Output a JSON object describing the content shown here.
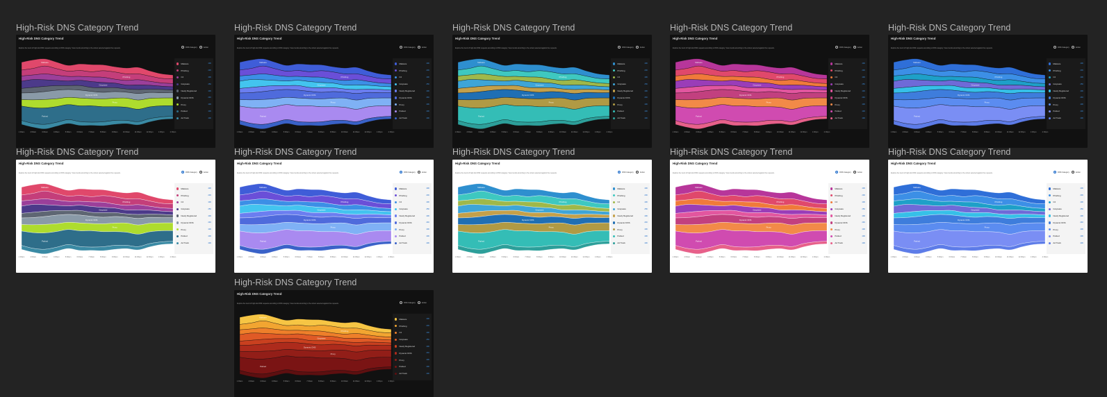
{
  "variant_label": "High-Risk DNS Category Trend",
  "card": {
    "title": "High-Risk DNS Category Trend",
    "description": "Explore the trend of high-risk DNS requests according to DNS category. View trends according to the orders selected against the requests.",
    "toggle_options": [
      "DNS Category",
      "Action"
    ]
  },
  "chart_data": {
    "type": "area",
    "stacked": true,
    "streamgraph": true,
    "title": "High-Risk DNS Category Trend",
    "xlabel": "",
    "ylabel": "",
    "x": [
      "1:00am",
      "2:00am",
      "3:00am",
      "4:00am",
      "5:00am",
      "6:00am",
      "7:00am",
      "8:00am",
      "9:00am",
      "10:00am",
      "11:00am",
      "12:00pm",
      "1:00pm",
      "2:00pm"
    ],
    "series": [
      {
        "name": "Malware",
        "total": "40K",
        "values": [
          12,
          13,
          11,
          10,
          9,
          10,
          11,
          9,
          8,
          9,
          10,
          8,
          7,
          6
        ]
      },
      {
        "name": "Phishing",
        "total": "23K",
        "values": [
          9,
          10,
          12,
          10,
          8,
          9,
          8,
          10,
          11,
          10,
          9,
          8,
          7,
          7
        ]
      },
      {
        "name": "C2",
        "total": "40K",
        "values": [
          8,
          7,
          9,
          8,
          7,
          6,
          7,
          8,
          6,
          7,
          8,
          6,
          5,
          5
        ]
      },
      {
        "name": "Grayware",
        "total": "25K",
        "values": [
          11,
          12,
          10,
          8,
          7,
          8,
          9,
          8,
          7,
          6,
          7,
          6,
          5,
          5
        ]
      },
      {
        "name": "Newly Registered",
        "total": "40K",
        "values": [
          7,
          8,
          8,
          7,
          6,
          7,
          6,
          7,
          6,
          5,
          6,
          5,
          5,
          4
        ]
      },
      {
        "name": "Dynamic DNS",
        "total": "24K",
        "values": [
          10,
          11,
          12,
          13,
          12,
          12,
          11,
          10,
          10,
          9,
          10,
          9,
          8,
          8
        ]
      },
      {
        "name": "Proxy",
        "total": "40K",
        "values": [
          10,
          12,
          13,
          12,
          11,
          12,
          11,
          12,
          13,
          14,
          14,
          13,
          12,
          12
        ]
      },
      {
        "name": "Parked",
        "total": "40K",
        "values": [
          22,
          24,
          25,
          24,
          23,
          24,
          25,
          23,
          21,
          20,
          19,
          18,
          17,
          16
        ]
      },
      {
        "name": "Ad Track",
        "total": "40K",
        "values": [
          6,
          6,
          7,
          6,
          6,
          6,
          5,
          6,
          6,
          5,
          5,
          5,
          4,
          4
        ]
      }
    ],
    "legend_position": "right",
    "grid": false
  },
  "variants": [
    {
      "theme": "dark",
      "colors": [
        "#e0486b",
        "#c43e7a",
        "#9b3f9a",
        "#4c3a8a",
        "#5e6673",
        "#8a9aa8",
        "#aedc2e",
        "#2e6e8a",
        "#3a8aa4"
      ]
    },
    {
      "theme": "dark",
      "colors": [
        "#3f5dd8",
        "#6a4fd8",
        "#3c8fe6",
        "#43c4ef",
        "#6b7ef0",
        "#4f6bdc",
        "#7fb1f5",
        "#a98af0",
        "#3a62c8"
      ]
    },
    {
      "theme": "dark",
      "colors": [
        "#2e8fcf",
        "#3ec8c0",
        "#9fb84a",
        "#3ea5d8",
        "#c4a04a",
        "#1f6fb4",
        "#b09a44",
        "#34bdb6",
        "#2d9f9a"
      ]
    },
    {
      "theme": "dark",
      "colors": [
        "#b7369a",
        "#e0486b",
        "#f07a3a",
        "#9a3db8",
        "#e2569f",
        "#c2407f",
        "#f28a48",
        "#d04bb0",
        "#e7608a"
      ]
    },
    {
      "theme": "dark",
      "colors": [
        "#2f6fd8",
        "#3c8fe6",
        "#1ea0c8",
        "#6f6ad8",
        "#36c0e8",
        "#3e7ddc",
        "#5b8cf0",
        "#7a8ef4",
        "#5d7ce8"
      ]
    },
    {
      "theme": "light",
      "colors": [
        "#e0486b",
        "#c43e7a",
        "#9b3f9a",
        "#4c3a8a",
        "#5e6673",
        "#8a9aa8",
        "#aedc2e",
        "#2e6e8a",
        "#3a8aa4"
      ]
    },
    {
      "theme": "light",
      "colors": [
        "#3f5dd8",
        "#6a4fd8",
        "#3c8fe6",
        "#43c4ef",
        "#6b7ef0",
        "#4f6bdc",
        "#7fb1f5",
        "#a98af0",
        "#3a62c8"
      ]
    },
    {
      "theme": "light",
      "colors": [
        "#2e8fcf",
        "#3ec8c0",
        "#9fb84a",
        "#3ea5d8",
        "#c4a04a",
        "#1f6fb4",
        "#b09a44",
        "#34bdb6",
        "#2d9f9a"
      ]
    },
    {
      "theme": "light",
      "colors": [
        "#b7369a",
        "#e0486b",
        "#f07a3a",
        "#9a3db8",
        "#e2569f",
        "#c2407f",
        "#f28a48",
        "#d04bb0",
        "#e7608a"
      ]
    },
    {
      "theme": "light",
      "colors": [
        "#2f6fd8",
        "#3c8fe6",
        "#1ea0c8",
        "#6f6ad8",
        "#36c0e8",
        "#3e7ddc",
        "#5b8cf0",
        "#7a8ef4",
        "#5d7ce8"
      ]
    },
    {
      "theme": "dark",
      "colors": [
        "#f6c544",
        "#f2a531",
        "#ee7f2a",
        "#e05a26",
        "#c9401f",
        "#ad2b1c",
        "#921e18",
        "#7a1414",
        "#5e0f10"
      ]
    }
  ]
}
